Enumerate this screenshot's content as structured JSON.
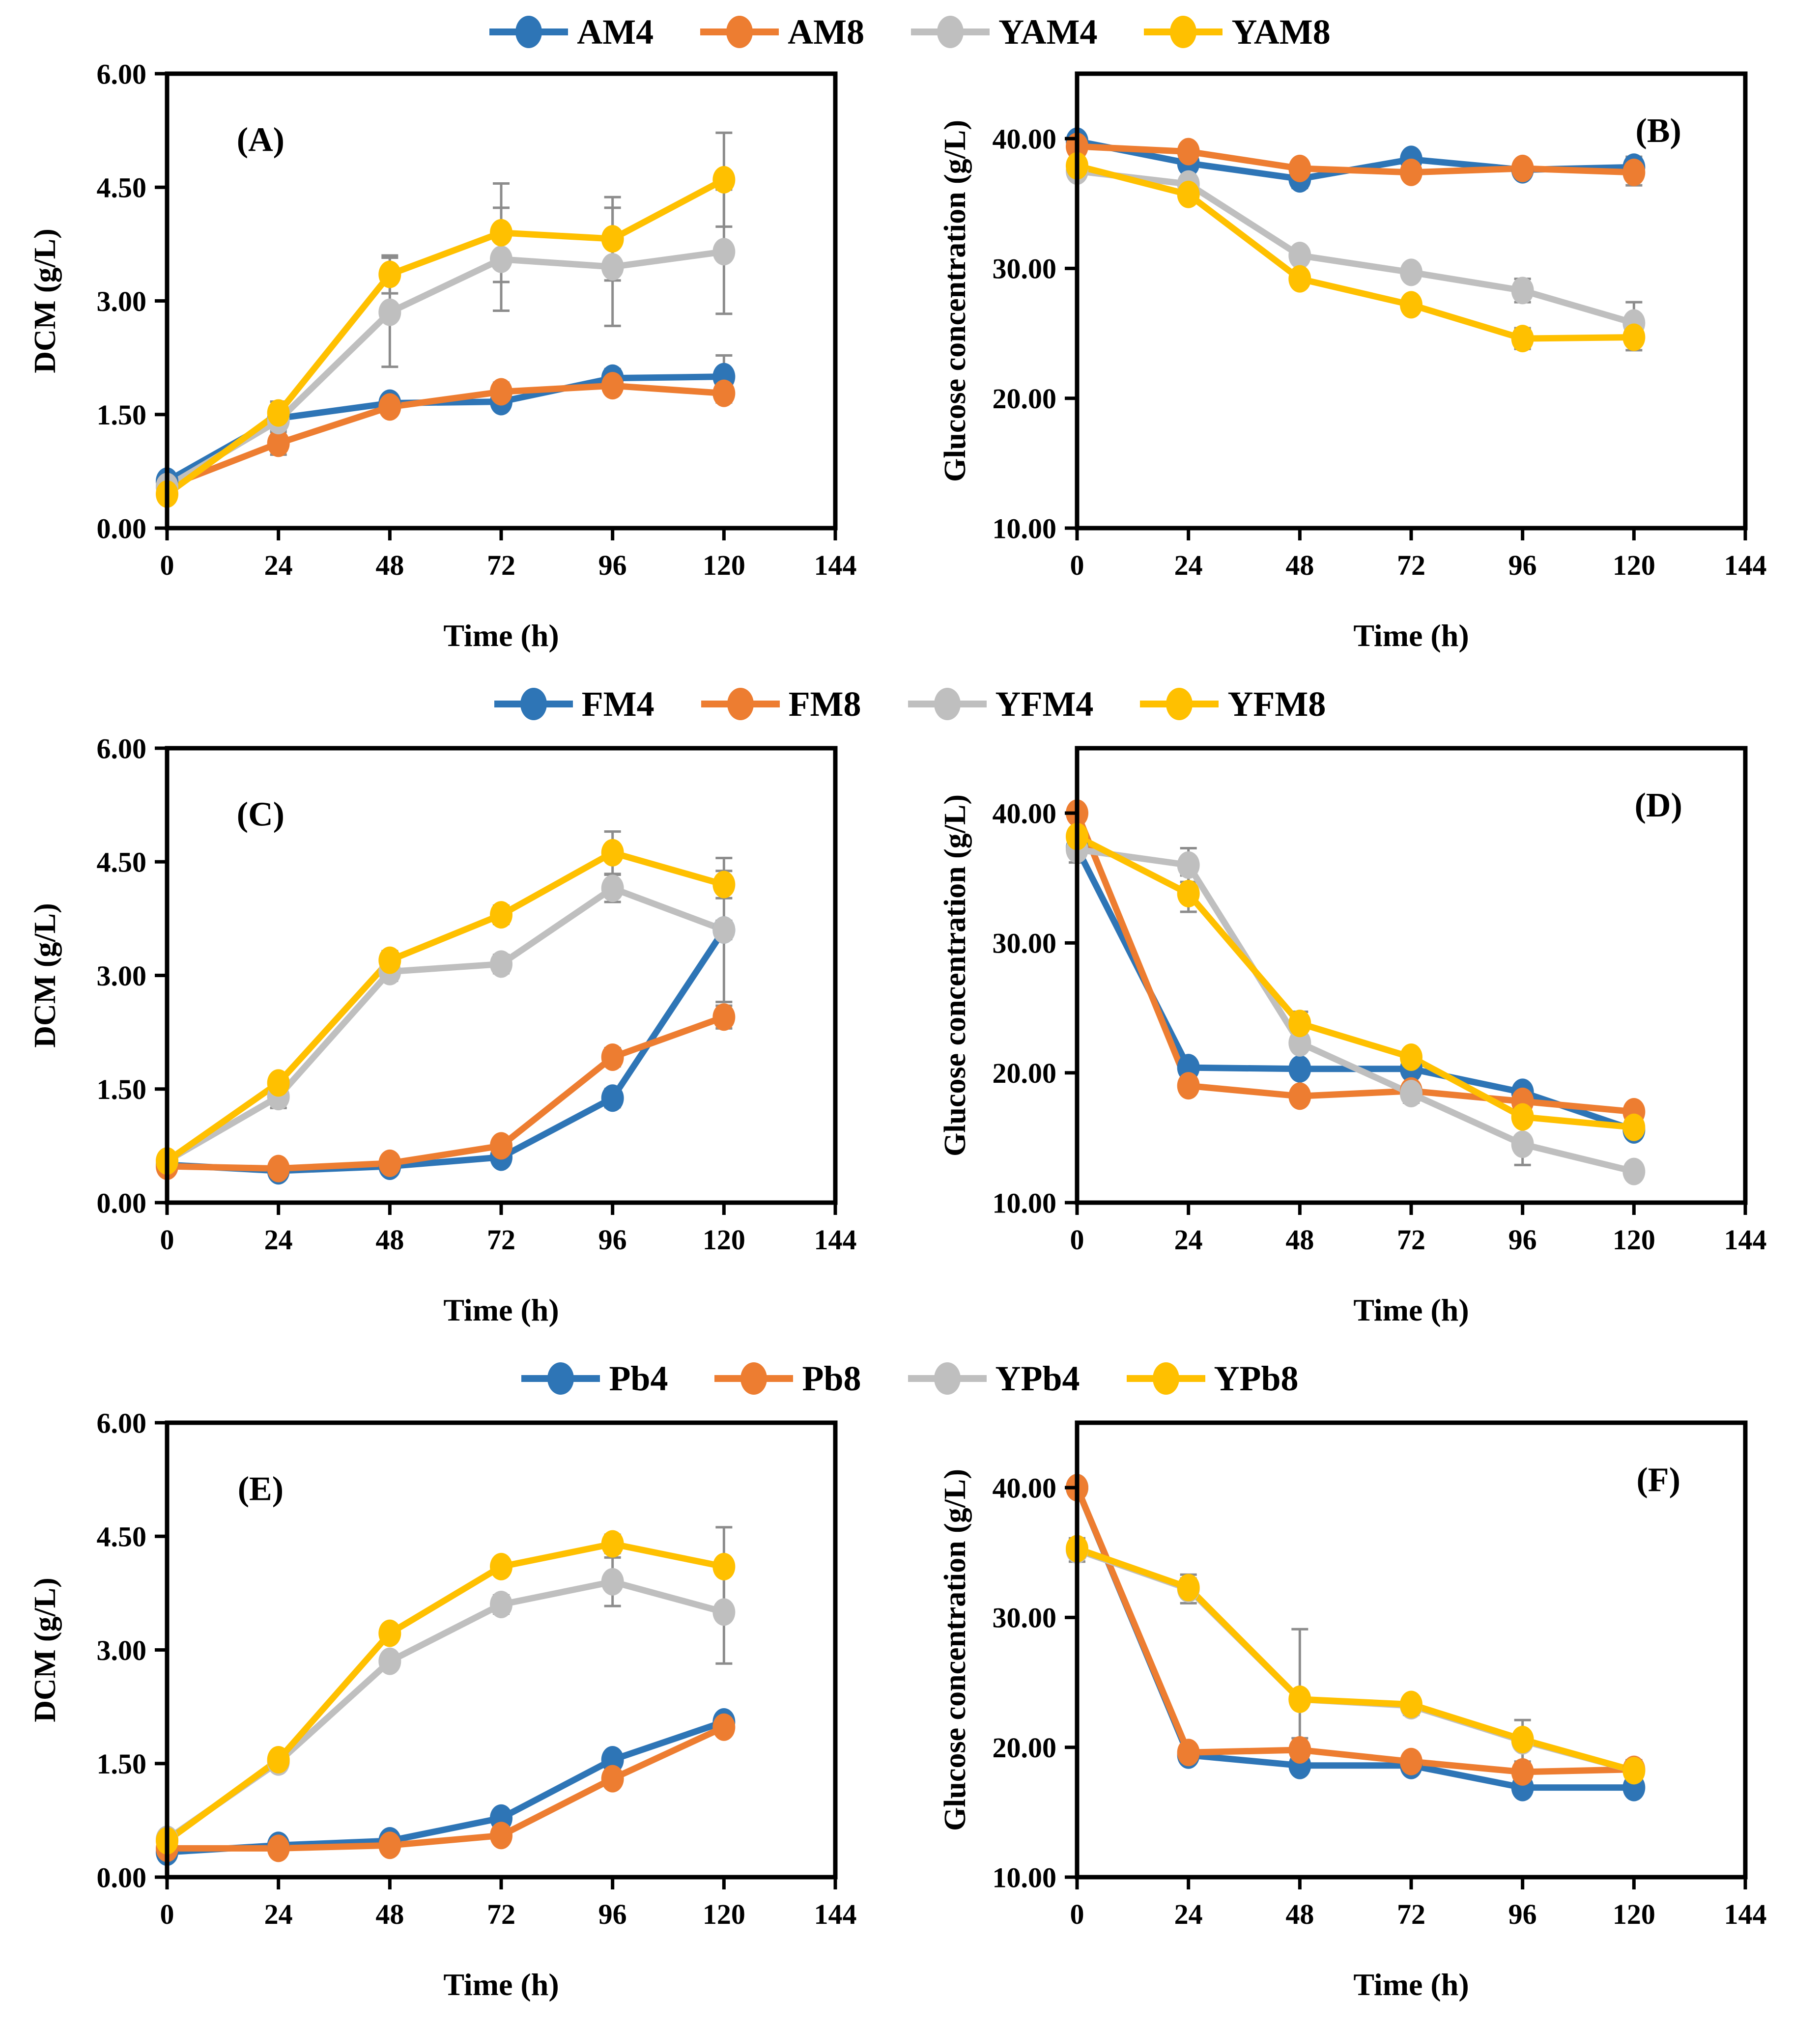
{
  "figure": {
    "xlabel": "Time (h)",
    "dcm_ylabel": "DCM (g/L)",
    "glucose_ylabel": "Glucose concentration  (g/L)"
  },
  "colors": {
    "blue": "#2E75B6",
    "orange": "#ED7D31",
    "gray": "#BFBFBF",
    "yellow": "#FFC000",
    "error": "#8C8C8C",
    "axis": "#000000"
  },
  "legends": [
    {
      "items": [
        {
          "label": "AM4",
          "color": "blue"
        },
        {
          "label": "AM8",
          "color": "orange"
        },
        {
          "label": "YAM4",
          "color": "gray"
        },
        {
          "label": "YAM8",
          "color": "yellow"
        }
      ]
    },
    {
      "items": [
        {
          "label": "FM4",
          "color": "blue"
        },
        {
          "label": "FM8",
          "color": "orange"
        },
        {
          "label": "YFM4",
          "color": "gray"
        },
        {
          "label": "YFM8",
          "color": "yellow"
        }
      ]
    },
    {
      "items": [
        {
          "label": "Pb4",
          "color": "blue"
        },
        {
          "label": "Pb8",
          "color": "orange"
        },
        {
          "label": "YPb4",
          "color": "gray"
        },
        {
          "label": "YPb8",
          "color": "yellow"
        }
      ]
    }
  ],
  "chart_data": [
    {
      "type": "line",
      "panel_label": "(A)",
      "row": 0,
      "side": "left",
      "xlabel": "Time (h)",
      "ylabel": "DCM (g/L)",
      "x": [
        0,
        24,
        48,
        72,
        96,
        120
      ],
      "xlim": [
        0,
        144
      ],
      "xticks": [
        "0",
        "24",
        "48",
        "72",
        "96",
        "120",
        "144"
      ],
      "xtick_vals": [
        0,
        24,
        48,
        72,
        96,
        120,
        144
      ],
      "ylim": [
        0,
        6
      ],
      "yticks": [
        "0.00",
        "1.50",
        "3.00",
        "4.50",
        "6.00"
      ],
      "ytick_vals": [
        0,
        1.5,
        3,
        4.5,
        6
      ],
      "letter_fx": 0.14,
      "letter_fy": 0.17,
      "series": [
        {
          "name": "AM4",
          "color": "blue",
          "values": [
            0.62,
            1.45,
            1.65,
            1.67,
            1.98,
            2.0
          ],
          "errors": [
            0.05,
            0.08,
            0.06,
            0.06,
            0.12,
            0.28
          ]
        },
        {
          "name": "AM8",
          "color": "orange",
          "values": [
            0.55,
            1.12,
            1.6,
            1.8,
            1.88,
            1.78
          ],
          "errors": [
            0.05,
            0.15,
            0.1,
            0.12,
            0.1,
            0.12
          ]
        },
        {
          "name": "YAM4",
          "color": "gray",
          "values": [
            0.55,
            1.42,
            2.85,
            3.55,
            3.45,
            3.65
          ],
          "errors": [
            0.06,
            0.12,
            0.72,
            0.68,
            0.78,
            0.82
          ]
        },
        {
          "name": "YAM8",
          "color": "yellow",
          "values": [
            0.45,
            1.52,
            3.35,
            3.9,
            3.82,
            4.6
          ],
          "errors": [
            0.05,
            0.15,
            0.25,
            0.65,
            0.55,
            0.62
          ]
        }
      ]
    },
    {
      "type": "line",
      "panel_label": "(B)",
      "row": 0,
      "side": "right",
      "xlabel": "Time (h)",
      "ylabel": "Glucose concentration  (g/L)",
      "x": [
        0,
        24,
        48,
        72,
        96,
        120
      ],
      "xlim": [
        0,
        144
      ],
      "xticks": [
        "0",
        "24",
        "48",
        "72",
        "96",
        "120",
        "144"
      ],
      "xtick_vals": [
        0,
        24,
        48,
        72,
        96,
        120,
        144
      ],
      "ylim": [
        10,
        45
      ],
      "yticks": [
        "10.00",
        "20.00",
        "30.00",
        "40.00"
      ],
      "ytick_vals": [
        10,
        20,
        30,
        40
      ],
      "letter_fx": 0.87,
      "letter_fy": 0.15,
      "series": [
        {
          "name": "AM4",
          "color": "blue",
          "values": [
            39.8,
            38.1,
            36.9,
            38.4,
            37.6,
            37.8
          ],
          "errors": [
            0.4,
            0.5,
            0.7,
            0.4,
            0.6,
            0.8
          ]
        },
        {
          "name": "AM8",
          "color": "orange",
          "values": [
            39.4,
            39.0,
            37.7,
            37.4,
            37.7,
            37.4
          ],
          "errors": [
            0.4,
            0.5,
            0.5,
            0.4,
            0.4,
            1.0
          ]
        },
        {
          "name": "YAM4",
          "color": "gray",
          "values": [
            37.5,
            36.5,
            31.0,
            29.7,
            28.3,
            25.8
          ],
          "errors": [
            0.4,
            0.4,
            0.6,
            0.5,
            0.9,
            1.6
          ]
        },
        {
          "name": "YAM8",
          "color": "yellow",
          "values": [
            37.9,
            35.7,
            29.2,
            27.2,
            24.6,
            24.7
          ],
          "errors": [
            0.4,
            0.4,
            0.6,
            0.5,
            0.8,
            1.0
          ]
        }
      ]
    },
    {
      "type": "line",
      "panel_label": "(C)",
      "row": 1,
      "side": "left",
      "xlabel": "Time (h)",
      "ylabel": "DCM (g/L)",
      "x": [
        0,
        24,
        48,
        72,
        96,
        120
      ],
      "xlim": [
        0,
        144
      ],
      "xticks": [
        "0",
        "24",
        "48",
        "72",
        "96",
        "120",
        "144"
      ],
      "xtick_vals": [
        0,
        24,
        48,
        72,
        96,
        120,
        144
      ],
      "ylim": [
        0,
        6
      ],
      "yticks": [
        "0.00",
        "1.50",
        "3.00",
        "4.50",
        "6.00"
      ],
      "ytick_vals": [
        0,
        1.5,
        3,
        4.5,
        6
      ],
      "letter_fx": 0.14,
      "letter_fy": 0.17,
      "series": [
        {
          "name": "FM4",
          "color": "blue",
          "values": [
            0.5,
            0.42,
            0.48,
            0.6,
            1.38,
            3.6
          ],
          "errors": [
            0.04,
            0.05,
            0.05,
            0.06,
            0.12,
            0.12
          ]
        },
        {
          "name": "FM8",
          "color": "orange",
          "values": [
            0.48,
            0.45,
            0.52,
            0.75,
            1.92,
            2.45
          ],
          "errors": [
            0.04,
            0.05,
            0.05,
            0.1,
            0.12,
            0.15
          ]
        },
        {
          "name": "YFM4",
          "color": "gray",
          "values": [
            0.55,
            1.4,
            3.05,
            3.15,
            4.15,
            3.6
          ],
          "errors": [
            0.04,
            0.15,
            0.12,
            0.12,
            0.18,
            0.95
          ]
        },
        {
          "name": "YFM8",
          "color": "yellow",
          "values": [
            0.55,
            1.58,
            3.2,
            3.8,
            4.62,
            4.2
          ],
          "errors": [
            0.04,
            0.1,
            0.12,
            0.12,
            0.28,
            0.18
          ]
        }
      ]
    },
    {
      "type": "line",
      "panel_label": "(D)",
      "row": 1,
      "side": "right",
      "xlabel": "Time (h)",
      "ylabel": "Glucose concentration  (g/L)",
      "x": [
        0,
        24,
        48,
        72,
        96,
        120
      ],
      "xlim": [
        0,
        144
      ],
      "xticks": [
        "0",
        "24",
        "48",
        "72",
        "96",
        "120",
        "144"
      ],
      "xtick_vals": [
        0,
        24,
        48,
        72,
        96,
        120,
        144
      ],
      "ylim": [
        10,
        45
      ],
      "yticks": [
        "10.00",
        "20.00",
        "30.00",
        "40.00"
      ],
      "ytick_vals": [
        10,
        20,
        30,
        40
      ],
      "letter_fx": 0.87,
      "letter_fy": 0.15,
      "series": [
        {
          "name": "FM4",
          "color": "blue",
          "values": [
            37.3,
            20.4,
            20.3,
            20.3,
            18.5,
            15.6
          ],
          "errors": [
            0.5,
            0.5,
            0.5,
            0.6,
            0.5,
            0.5
          ]
        },
        {
          "name": "FM8",
          "color": "orange",
          "values": [
            40.0,
            19.0,
            18.2,
            18.6,
            17.8,
            17.0
          ],
          "errors": [
            0.5,
            0.5,
            0.4,
            0.4,
            0.5,
            0.4
          ]
        },
        {
          "name": "YFM4",
          "color": "gray",
          "values": [
            37.2,
            36.0,
            22.3,
            18.4,
            14.5,
            12.4
          ],
          "errors": [
            1.0,
            1.3,
            0.6,
            0.7,
            1.6,
            0.5
          ]
        },
        {
          "name": "YFM8",
          "color": "yellow",
          "values": [
            38.2,
            33.8,
            23.8,
            21.2,
            16.6,
            15.8
          ],
          "errors": [
            0.5,
            1.4,
            0.9,
            0.6,
            0.5,
            0.7
          ]
        }
      ]
    },
    {
      "type": "line",
      "panel_label": "(E)",
      "row": 2,
      "side": "left",
      "xlabel": "Time (h)",
      "ylabel": "DCM (g/L)",
      "x": [
        0,
        24,
        48,
        72,
        96,
        120
      ],
      "xlim": [
        0,
        144
      ],
      "xticks": [
        "0",
        "24",
        "48",
        "72",
        "96",
        "120",
        "144"
      ],
      "xtick_vals": [
        0,
        24,
        48,
        72,
        96,
        120,
        144
      ],
      "ylim": [
        0,
        6
      ],
      "yticks": [
        "0.00",
        "1.50",
        "3.00",
        "4.50",
        "6.00"
      ],
      "ytick_vals": [
        0,
        1.5,
        3,
        4.5,
        6
      ],
      "letter_fx": 0.14,
      "letter_fy": 0.17,
      "series": [
        {
          "name": "Pb4",
          "color": "blue",
          "values": [
            0.33,
            0.42,
            0.48,
            0.78,
            1.55,
            2.05
          ],
          "errors": [
            0.04,
            0.05,
            0.05,
            0.08,
            0.1,
            0.08
          ]
        },
        {
          "name": "Pb8",
          "color": "orange",
          "values": [
            0.38,
            0.38,
            0.42,
            0.55,
            1.3,
            1.98
          ],
          "errors": [
            0.04,
            0.05,
            0.05,
            0.06,
            0.08,
            0.1
          ]
        },
        {
          "name": "YPb4",
          "color": "gray",
          "values": [
            0.5,
            1.52,
            2.85,
            3.6,
            3.9,
            3.5
          ],
          "errors": [
            0.05,
            0.08,
            0.1,
            0.12,
            0.32,
            0.68
          ]
        },
        {
          "name": "YPb8",
          "color": "yellow",
          "values": [
            0.48,
            1.55,
            3.22,
            4.1,
            4.4,
            4.1
          ],
          "errors": [
            0.05,
            0.08,
            0.1,
            0.1,
            0.12,
            0.52
          ]
        }
      ]
    },
    {
      "type": "line",
      "panel_label": "(F)",
      "row": 2,
      "side": "right",
      "xlabel": "Time (h)",
      "ylabel": "Glucose concentration  (g/L)",
      "x": [
        0,
        24,
        48,
        72,
        96,
        120
      ],
      "xlim": [
        0,
        144
      ],
      "xticks": [
        "0",
        "24",
        "48",
        "72",
        "96",
        "120",
        "144"
      ],
      "xtick_vals": [
        0,
        24,
        48,
        72,
        96,
        120,
        144
      ],
      "ylim": [
        10,
        45
      ],
      "yticks": [
        "10.00",
        "20.00",
        "30.00",
        "40.00"
      ],
      "ytick_vals": [
        10,
        20,
        30,
        40
      ],
      "letter_fx": 0.87,
      "letter_fy": 0.15,
      "series": [
        {
          "name": "Pb4",
          "color": "blue",
          "values": [
            40.0,
            19.4,
            18.6,
            18.6,
            16.9,
            16.9
          ],
          "errors": [
            0.4,
            0.3,
            0.4,
            0.4,
            0.4,
            0.6
          ]
        },
        {
          "name": "Pb8",
          "color": "orange",
          "values": [
            40.0,
            19.6,
            19.8,
            18.9,
            18.1,
            18.3
          ],
          "errors": [
            0.4,
            0.3,
            0.9,
            0.4,
            0.4,
            0.7
          ]
        },
        {
          "name": "YPb4",
          "color": "gray",
          "values": [
            35.2,
            32.2,
            23.7,
            23.2,
            20.5,
            18.2
          ],
          "errors": [
            0.9,
            1.1,
            5.4,
            0.7,
            1.6,
            0.8
          ]
        },
        {
          "name": "YPb8",
          "color": "yellow",
          "values": [
            35.3,
            32.3,
            23.7,
            23.3,
            20.6,
            18.2
          ],
          "errors": [
            0.4,
            0.7,
            0.6,
            0.6,
            0.6,
            0.5
          ]
        }
      ]
    }
  ]
}
